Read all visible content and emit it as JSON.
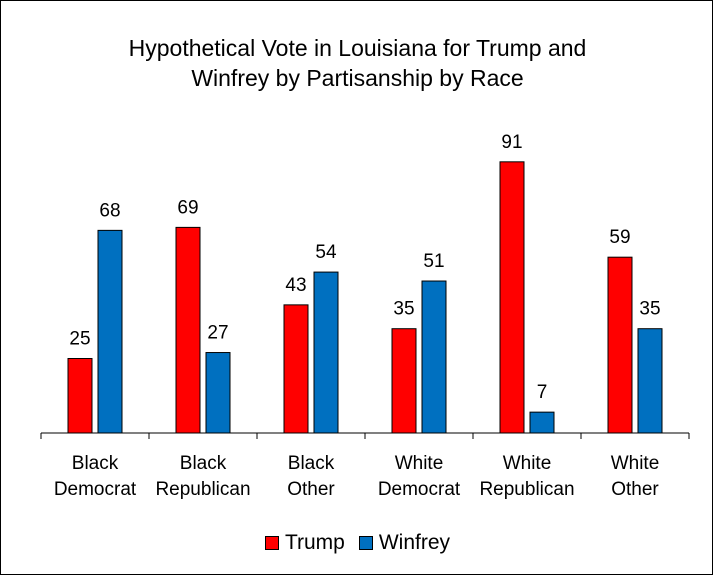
{
  "chart_data": {
    "type": "bar",
    "title_line1": "Hypothetical Vote in Louisiana for Trump and",
    "title_line2": "Winfrey by Partisanship by Race",
    "categories": [
      [
        "Black",
        "Democrat"
      ],
      [
        "Black",
        "Republican"
      ],
      [
        "Black",
        "Other"
      ],
      [
        "White",
        "Democrat"
      ],
      [
        "White",
        "Republican"
      ],
      [
        "White",
        "Other"
      ]
    ],
    "series": [
      {
        "name": "Trump",
        "color": "#ff0000",
        "values": [
          25,
          69,
          43,
          35,
          91,
          59
        ]
      },
      {
        "name": "Winfrey",
        "color": "#0070c0",
        "values": [
          68,
          27,
          54,
          51,
          7,
          35
        ]
      }
    ],
    "ylim": [
      0,
      100
    ],
    "grid": false,
    "data_labels": true,
    "legend_position": "bottom"
  }
}
